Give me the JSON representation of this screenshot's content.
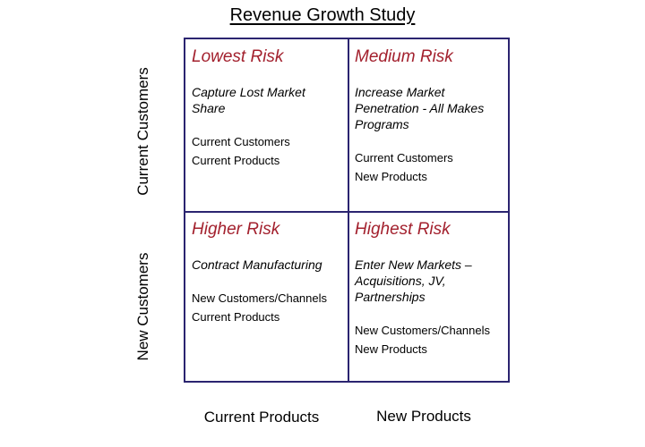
{
  "title": "Revenue Growth Study",
  "axes": {
    "rows": [
      "Current Customers",
      "New Customers"
    ],
    "columns": [
      "Current Products",
      "New Products"
    ]
  },
  "cells": [
    {
      "risk": "Lowest Risk",
      "strategy": "Capture Lost Market Share",
      "details": [
        "Current Customers",
        "Current Products"
      ]
    },
    {
      "risk": "Medium Risk",
      "strategy": "Increase Market Penetration - All Makes Programs",
      "details": [
        "Current Customers",
        "New Products"
      ]
    },
    {
      "risk": "Higher Risk",
      "strategy": "Contract Manufacturing",
      "details": [
        "New Customers/Channels",
        "Current Products"
      ]
    },
    {
      "risk": "Highest Risk",
      "strategy": "Enter New Markets – Acquisitions, JV, Partnerships",
      "details": [
        "New Customers/Channels",
        "New Products"
      ]
    }
  ],
  "colors": {
    "grid_border": "#2b2470",
    "risk_text": "#a3212e"
  }
}
